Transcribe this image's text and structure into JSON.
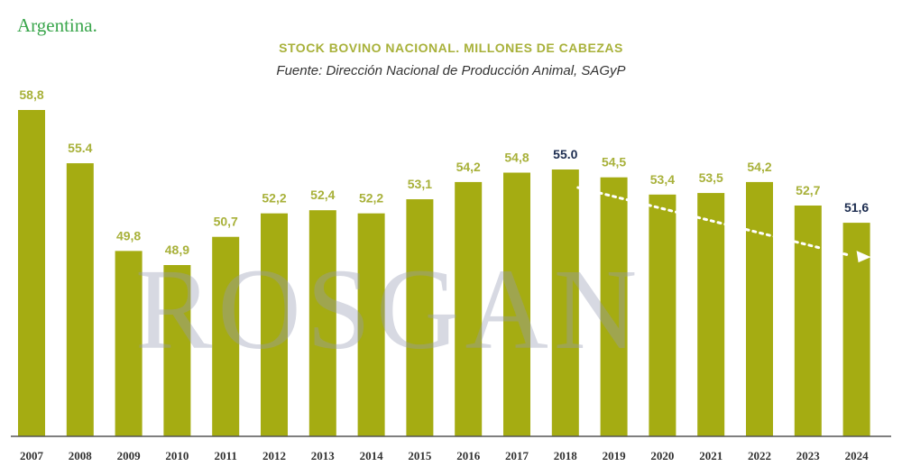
{
  "header": {
    "country": "Argentina."
  },
  "watermark": "ROSGAN",
  "colors": {
    "bar": "#a5ac12",
    "label": "#a8b13a",
    "highlight": "#1d2d50",
    "axis": "#555555",
    "trend": "#ffffff"
  },
  "chart_data": {
    "type": "bar",
    "title": "STOCK BOVINO NACIONAL. MILLONES DE CABEZAS",
    "subtitle": "Fuente: Dirección Nacional de Producción Animal, SAGyP",
    "categories": [
      "2007",
      "2008",
      "2009",
      "2010",
      "2011",
      "2012",
      "2013",
      "2014",
      "2015",
      "2016",
      "2017",
      "2018",
      "2019",
      "2020",
      "2021",
      "2022",
      "2023",
      "2024"
    ],
    "values": [
      58.8,
      55.4,
      49.8,
      48.9,
      50.7,
      52.2,
      52.4,
      52.2,
      53.1,
      54.2,
      54.8,
      55.0,
      54.5,
      53.4,
      53.5,
      54.2,
      52.7,
      51.6
    ],
    "value_labels": [
      "58,8",
      "55.4",
      "49,8",
      "48,9",
      "50,7",
      "52,2",
      "52,4",
      "52,2",
      "53,1",
      "54,2",
      "54,8",
      "55.0",
      "54,5",
      "53,4",
      "53,5",
      "54,2",
      "52,7",
      "51,6"
    ],
    "highlighted": [
      "2018",
      "2024"
    ],
    "trend_line": {
      "from": "2018",
      "to": "2024",
      "style": "dotted-arrow"
    },
    "xlabel": "",
    "ylabel": "",
    "grid": false
  }
}
